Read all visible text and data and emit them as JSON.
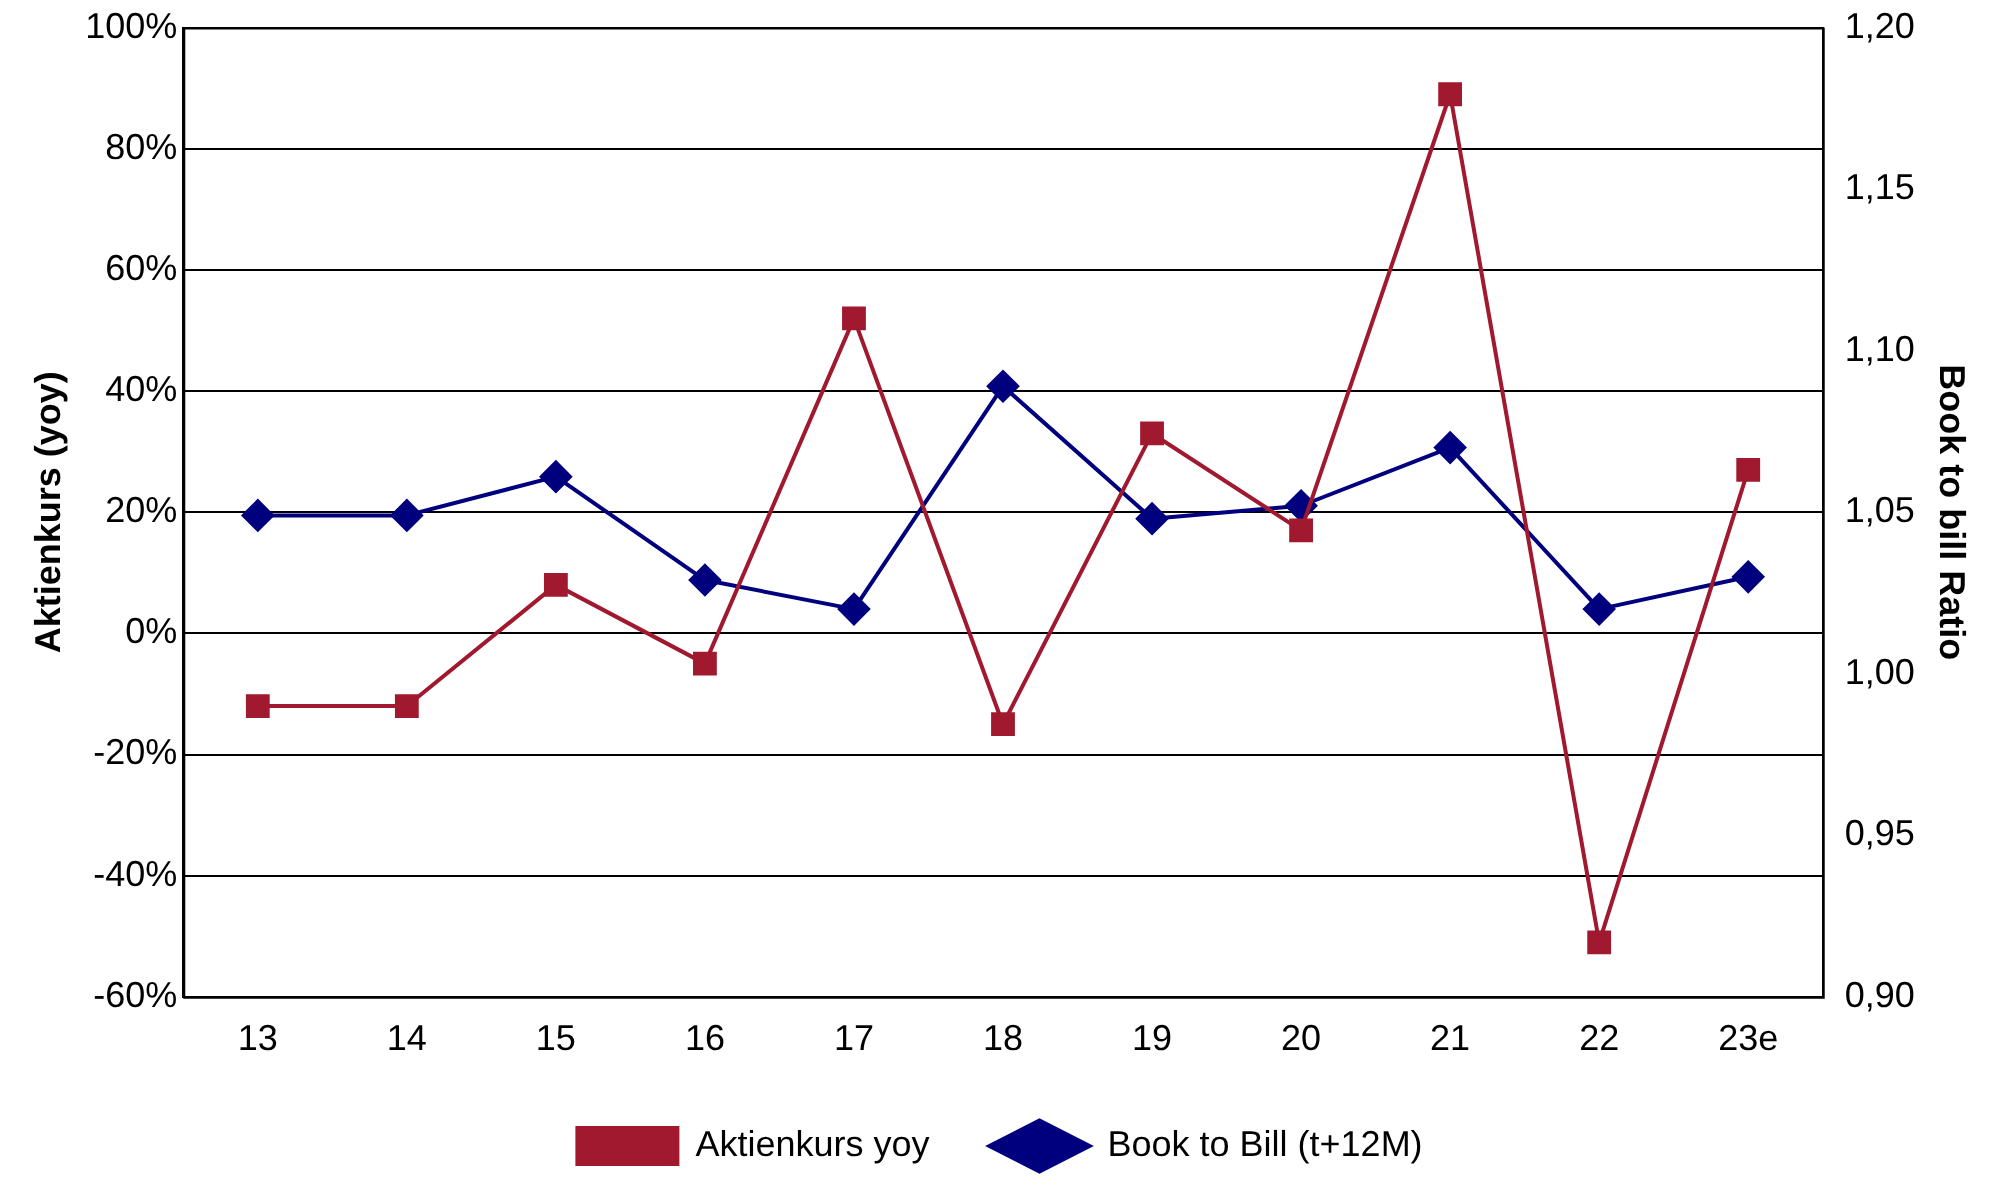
{
  "chart_data": {
    "type": "line",
    "categories": [
      "13",
      "14",
      "15",
      "16",
      "17",
      "18",
      "19",
      "20",
      "21",
      "22",
      "23e"
    ],
    "ylabel": "Aktienkurs (yoy)",
    "y2label": "Book to bill Ratio",
    "ylim": [
      -60,
      100
    ],
    "yticks": [
      {
        "value": -60,
        "label": "-60%"
      },
      {
        "value": -40,
        "label": "-40%"
      },
      {
        "value": -20,
        "label": "-20%"
      },
      {
        "value": 0,
        "label": "0%"
      },
      {
        "value": 20,
        "label": "20%"
      },
      {
        "value": 40,
        "label": "40%"
      },
      {
        "value": 60,
        "label": "60%"
      },
      {
        "value": 80,
        "label": "80%"
      },
      {
        "value": 100,
        "label": "100%"
      }
    ],
    "y2lim": [
      0.9,
      1.2
    ],
    "y2ticks": [
      {
        "value": 0.9,
        "label": "0,90"
      },
      {
        "value": 0.95,
        "label": "0,95"
      },
      {
        "value": 1.0,
        "label": "1,00"
      },
      {
        "value": 1.05,
        "label": "1,05"
      },
      {
        "value": 1.1,
        "label": "1,10"
      },
      {
        "value": 1.15,
        "label": "1,15"
      },
      {
        "value": 1.2,
        "label": "1,20"
      }
    ],
    "grid": "y",
    "legend": "bottom",
    "series": [
      {
        "name": "Aktienkurs yoy",
        "color": "#a0192e",
        "marker": "square",
        "values": [
          -12,
          -12,
          8,
          -5,
          52,
          -15,
          33,
          17,
          89,
          -51,
          27
        ]
      },
      {
        "name": "Book to Bill (t+12M)",
        "color": "#00007f",
        "marker": "diamond",
        "axis": "y2",
        "values": [
          1.049,
          1.049,
          1.061,
          1.029,
          1.02,
          1.089,
          1.048,
          1.052,
          1.07,
          1.02,
          1.03
        ]
      }
    ]
  }
}
